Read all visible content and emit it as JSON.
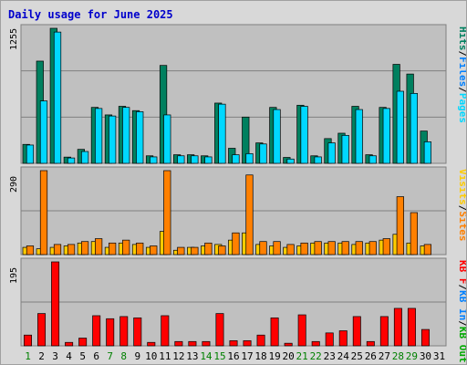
{
  "chart_data": {
    "type": "bar",
    "title": "Daily usage for June 2025",
    "x": [
      "1",
      "2",
      "3",
      "4",
      "5",
      "6",
      "7",
      "8",
      "9",
      "10",
      "11",
      "12",
      "13",
      "14",
      "15",
      "16",
      "17",
      "18",
      "19",
      "20",
      "21",
      "22",
      "23",
      "24",
      "25",
      "26",
      "27",
      "28",
      "29",
      "30",
      "31"
    ],
    "weekend_days": [
      "1",
      "7",
      "8",
      "14",
      "15",
      "21",
      "22",
      "28",
      "29"
    ],
    "colors": {
      "title": "#0000cc",
      "hits": "#008060",
      "files": "#00c0ff",
      "pages": "#00d8ff",
      "visits": "#ffcc00",
      "sites": "#ff8000",
      "kb_in": "#0080ff",
      "kb_out": "#00aa00",
      "kb_f": "#ff0000",
      "weekday_label": "#000000",
      "weekend_label": "#008000",
      "panel_bg": "#c0c0c0",
      "frame_bg": "#d8d8d8"
    },
    "panels": [
      {
        "id": "hits-files-pages",
        "max_label": "1255",
        "ymax": 1255,
        "legend": [
          {
            "text": "Hits",
            "color": "#00805f"
          },
          {
            "text": "/",
            "color": "#000000"
          },
          {
            "text": "Files",
            "color": "#0080ff"
          },
          {
            "text": "/",
            "color": "#000000"
          },
          {
            "text": "Pages",
            "color": "#00d8ff"
          }
        ],
        "series": [
          {
            "name": "Hits",
            "color": "#00805f",
            "values": [
              176,
              950,
              1255,
              58,
              130,
              520,
              450,
              530,
              490,
              70,
              910,
              80,
              80,
              70,
              560,
              140,
              430,
              190,
              520,
              55,
              540,
              70,
              230,
              280,
              530,
              80,
              520,
              920,
              830,
              300,
              null
            ]
          },
          {
            "name": "Files",
            "color": "#00d8ff",
            "values": [
              170,
              580,
              1220,
              50,
              110,
              510,
              440,
              520,
              480,
              60,
              450,
              70,
              70,
              60,
              550,
              80,
              90,
              180,
              500,
              40,
              530,
              60,
              190,
              260,
              500,
              70,
              510,
              670,
              650,
              200,
              null
            ]
          }
        ]
      },
      {
        "id": "visits-sites",
        "max_label": "290",
        "ymax": 290,
        "legend": [
          {
            "text": "Visits",
            "color": "#ffcc00"
          },
          {
            "text": "/",
            "color": "#000000"
          },
          {
            "text": "Sites",
            "color": "#ff8000"
          }
        ],
        "series": [
          {
            "name": "Visits",
            "color": "#ffcc00",
            "values": [
              25,
              20,
              25,
              30,
              40,
              45,
              25,
              40,
              35,
              25,
              80,
              15,
              25,
              30,
              35,
              50,
              75,
              35,
              30,
              25,
              30,
              40,
              40,
              40,
              35,
              40,
              50,
              70,
              40,
              30,
              null
            ]
          },
          {
            "name": "Sites",
            "color": "#ff8000",
            "values": [
              30,
              290,
              35,
              35,
              45,
              55,
              40,
              50,
              40,
              30,
              290,
              25,
              25,
              40,
              30,
              75,
              275,
              45,
              45,
              35,
              40,
              45,
              45,
              45,
              45,
              45,
              55,
              200,
              145,
              35,
              null
            ]
          }
        ]
      },
      {
        "id": "kbf-kbin-kbout",
        "max_label": "195",
        "ymax": 195,
        "legend": [
          {
            "text": "KB F",
            "color": "#ff0000"
          },
          {
            "text": "/",
            "color": "#000000"
          },
          {
            "text": "KB In",
            "color": "#0080ff"
          },
          {
            "text": "/",
            "color": "#000000"
          },
          {
            "text": "KB Out",
            "color": "#00aa00"
          }
        ],
        "series": [
          {
            "name": "KB F",
            "color": "#ff0000",
            "values": [
              25,
              75,
              195,
              8,
              18,
              70,
              63,
              68,
              65,
              8,
              70,
              10,
              10,
              10,
              75,
              12,
              12,
              25,
              65,
              6,
              72,
              10,
              30,
              35,
              68,
              10,
              68,
              87,
              87,
              38,
              null
            ]
          }
        ]
      }
    ]
  }
}
